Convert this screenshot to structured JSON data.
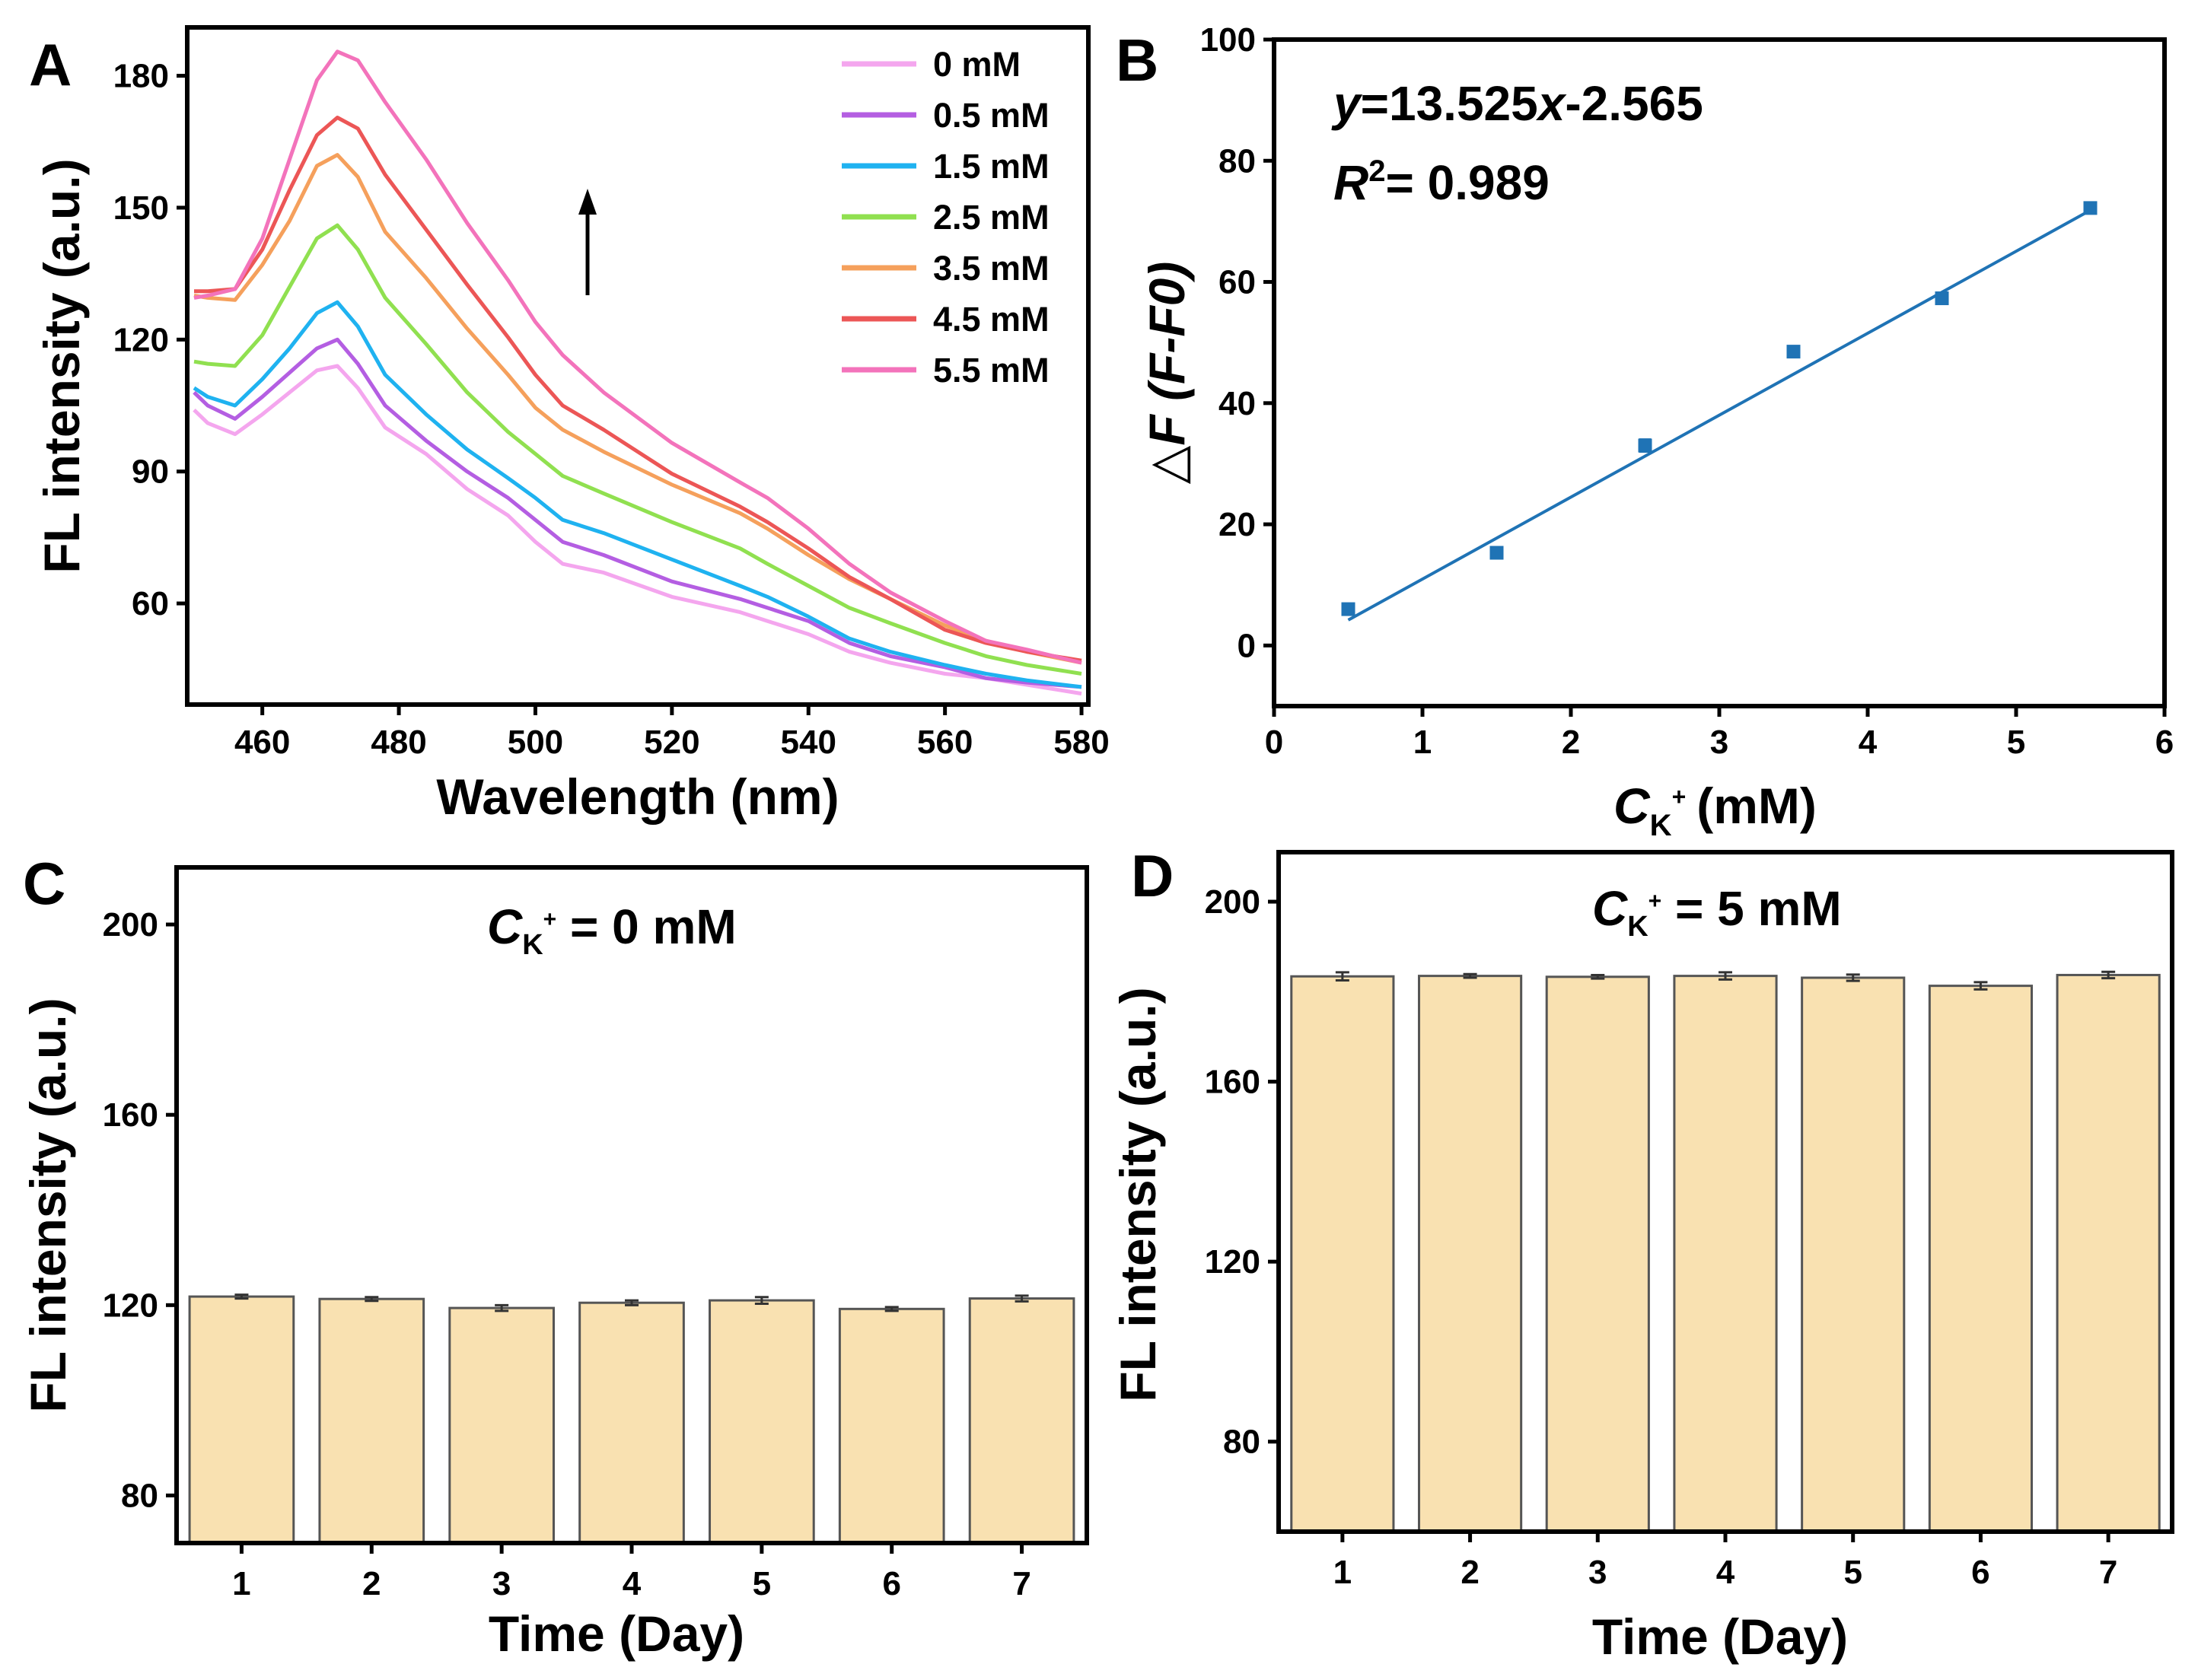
{
  "chart_data": [
    {
      "panel": "A",
      "type": "line",
      "xlabel": "Wavelength (nm)",
      "ylabel": "FL intensity (a.u.)",
      "xlim": [
        449,
        581
      ],
      "ylim": [
        37,
        191
      ],
      "xticks": [
        460,
        480,
        500,
        520,
        540,
        560,
        580
      ],
      "yticks": [
        60,
        90,
        120,
        150,
        180
      ],
      "arrow": "up",
      "x": [
        450,
        452,
        456,
        460,
        464,
        468,
        471,
        474,
        478,
        484,
        490,
        496,
        500,
        504,
        510,
        520,
        530,
        534,
        540,
        546,
        552,
        560,
        566,
        572,
        580
      ],
      "series": [
        {
          "name": "0 mM",
          "color": "#f4a6ee",
          "values": [
            104,
            101,
            98.5,
            103,
            108,
            113,
            114,
            109,
            100,
            94,
            86,
            80,
            74,
            69,
            67,
            61.5,
            58,
            56,
            53,
            49,
            46.5,
            44,
            43,
            41.5,
            39.5
          ]
        },
        {
          "name": "0.5 mM",
          "color": "#b45ee2",
          "values": [
            108,
            105,
            102,
            107,
            112.5,
            118,
            120,
            114.5,
            105,
            97,
            90,
            84,
            79,
            74,
            71,
            65,
            61,
            59,
            56,
            51,
            48,
            45.5,
            43,
            42,
            41
          ]
        },
        {
          "name": "1.5 mM",
          "color": "#1fb2f0",
          "values": [
            109,
            107,
            105,
            111,
            118,
            126,
            128.5,
            123,
            112,
            103,
            95,
            88.5,
            84,
            79,
            76,
            70,
            64,
            61.5,
            57,
            52,
            49,
            46,
            44,
            42.5,
            41
          ]
        },
        {
          "name": "2.5 mM",
          "color": "#90e050",
          "values": [
            115,
            114.5,
            114,
            121,
            132,
            143,
            146,
            140.5,
            129.5,
            119,
            108,
            99,
            94,
            89,
            85,
            78.5,
            72.5,
            69,
            64,
            59,
            55.5,
            51,
            48,
            46,
            44
          ]
        },
        {
          "name": "3.5 mM",
          "color": "#f5a05c",
          "values": [
            130,
            129.5,
            129,
            137,
            147,
            159.5,
            162,
            157,
            144.5,
            134,
            122.5,
            112,
            104.5,
            99.5,
            94.5,
            87,
            80.5,
            77,
            71,
            65.5,
            61,
            55,
            51.5,
            49,
            46.5
          ]
        },
        {
          "name": "4.5 mM",
          "color": "#ec5656",
          "values": [
            131,
            131,
            131.5,
            140.5,
            154,
            166.5,
            170.5,
            168,
            157.5,
            145,
            132.5,
            120.5,
            112,
            105,
            99.5,
            89.5,
            82,
            78.5,
            72.5,
            66,
            61,
            54,
            51,
            49,
            47
          ]
        },
        {
          "name": "5.5 mM",
          "color": "#f373bb",
          "values": [
            129.5,
            130,
            131.5,
            143,
            161,
            179,
            185.5,
            183.5,
            174,
            161,
            146.5,
            133.5,
            124,
            116.5,
            108,
            96.5,
            87.5,
            84,
            77,
            69,
            62.5,
            56,
            51.5,
            49.5,
            46.5
          ]
        }
      ]
    },
    {
      "panel": "B",
      "type": "scatter",
      "xlabel_var": "C",
      "xlabel_sub": "K",
      "xlabel_sup": "+",
      "xlabel_unit": "(mM)",
      "ylabel": "△F (F-F0)",
      "xlim": [
        0,
        6
      ],
      "ylim": [
        -10,
        100
      ],
      "xticks": [
        0,
        1,
        2,
        3,
        4,
        5,
        6
      ],
      "yticks": [
        0,
        20,
        40,
        60,
        80,
        100
      ],
      "x": [
        0.5,
        1.5,
        2.5,
        3.5,
        4.5,
        5.5
      ],
      "values": [
        6.0,
        15.3,
        33.0,
        48.5,
        57.3,
        72.2
      ],
      "errors": [
        0.9,
        0.9,
        1.0,
        0.8,
        0.9,
        0.7
      ],
      "point_color": "#1f73b5",
      "fit": {
        "slope": 13.525,
        "intercept": -2.565,
        "x_range": [
          0.5,
          5.5
        ],
        "color": "#1f73b5"
      },
      "equation": "=13.525",
      "equation_var_y": "y",
      "equation_var_x": "x",
      "equation_tail": "-2.565",
      "r2_label": "R",
      "r2_exp": "2",
      "r2_value": "= 0.989"
    },
    {
      "panel": "C",
      "type": "bar",
      "xlabel": "Time (Day)",
      "ylabel": "FL intensity (a.u.)",
      "ylim": [
        70,
        212
      ],
      "yticks": [
        80,
        120,
        160,
        200
      ],
      "categories": [
        "1",
        "2",
        "3",
        "4",
        "5",
        "6",
        "7"
      ],
      "values": [
        121.8,
        121.3,
        119.4,
        120.5,
        121.0,
        119.2,
        121.4
      ],
      "errors": [
        0.4,
        0.4,
        0.6,
        0.5,
        0.7,
        0.4,
        0.6
      ],
      "bar_color": "#f9e1b1",
      "annotation_var": "C",
      "annotation_sub": "K",
      "annotation_sup": "+",
      "annotation_text": " = 0 mM"
    },
    {
      "panel": "D",
      "type": "bar",
      "xlabel": "Time (Day)",
      "ylabel": "FL intensity (a.u.)",
      "ylim": [
        60,
        211
      ],
      "yticks": [
        80,
        120,
        160,
        200
      ],
      "categories": [
        "1",
        "2",
        "3",
        "4",
        "5",
        "6",
        "7"
      ],
      "values": [
        183.4,
        183.5,
        183.3,
        183.5,
        183.1,
        181.3,
        183.7
      ],
      "errors": [
        0.9,
        0.4,
        0.4,
        0.8,
        0.7,
        0.8,
        0.7
      ],
      "bar_color": "#f9e1b1",
      "annotation_var": "C",
      "annotation_sub": "K",
      "annotation_sup": "+",
      "annotation_text": " = 5 mM"
    }
  ]
}
